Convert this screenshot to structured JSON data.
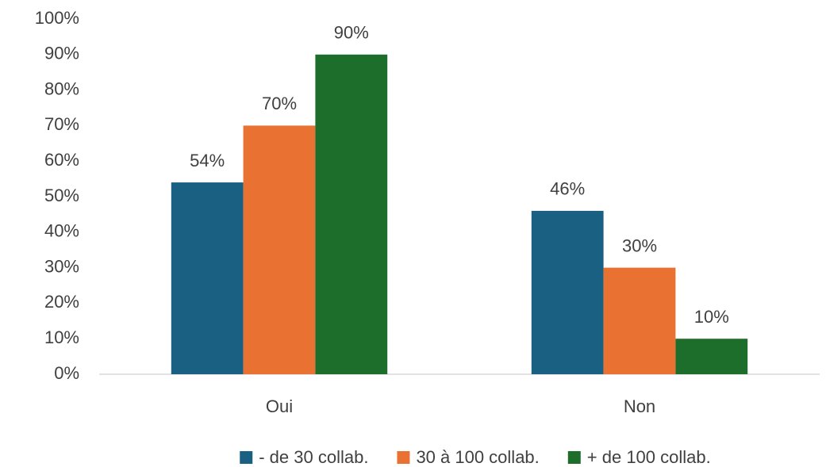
{
  "chart_data": {
    "type": "bar",
    "categories": [
      "Oui",
      "Non"
    ],
    "series": [
      {
        "name": "- de 30 collab.",
        "color": "#1a6083",
        "values": [
          54,
          46
        ],
        "value_labels": [
          "54%",
          "46%"
        ]
      },
      {
        "name": "30 à 100 collab.",
        "color": "#e97232",
        "values": [
          70,
          30
        ],
        "value_labels": [
          "70%",
          "30%"
        ]
      },
      {
        "name": "+ de 100 collab.",
        "color": "#1e6e2b",
        "values": [
          90,
          10
        ],
        "value_labels": [
          "90%",
          "10%"
        ]
      }
    ],
    "ylim": [
      0,
      100
    ],
    "yticks": [
      {
        "value": 0,
        "label": "0%"
      },
      {
        "value": 10,
        "label": "10%"
      },
      {
        "value": 20,
        "label": "20%"
      },
      {
        "value": 30,
        "label": "30%"
      },
      {
        "value": 40,
        "label": "40%"
      },
      {
        "value": 50,
        "label": "50%"
      },
      {
        "value": 60,
        "label": "60%"
      },
      {
        "value": 70,
        "label": "70%"
      },
      {
        "value": 80,
        "label": "80%"
      },
      {
        "value": 90,
        "label": "90%"
      },
      {
        "value": 100,
        "label": "100%"
      }
    ],
    "grid": false,
    "legend": "bottom"
  }
}
